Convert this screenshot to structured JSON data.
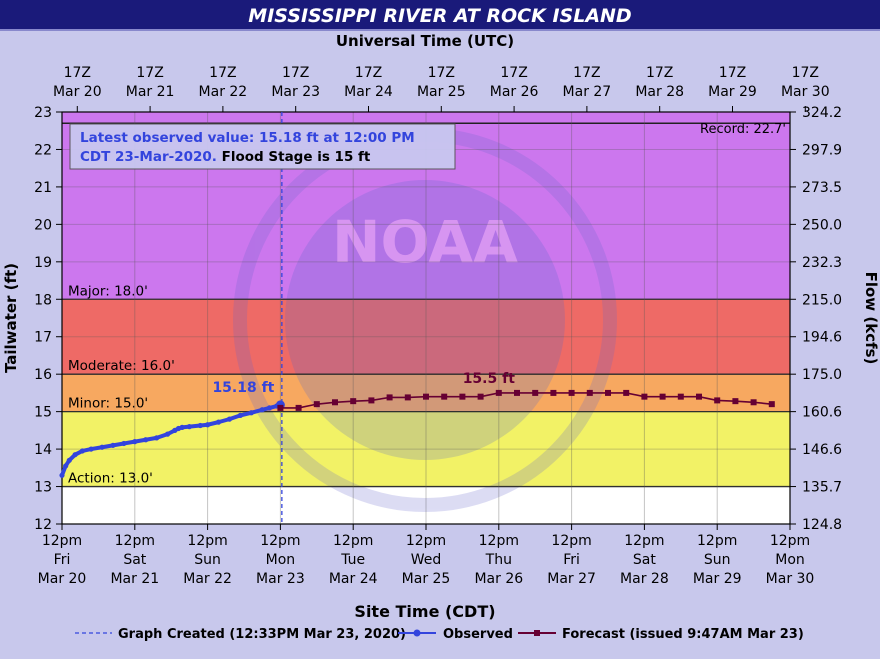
{
  "title": "MISSISSIPPI RIVER AT ROCK ISLAND",
  "top_axis_title": "Universal Time (UTC)",
  "bottom_axis_title": "Site Time (CDT)",
  "left_axis_title": "Tailwater (ft)",
  "right_axis_title": "Flow (kcfs)",
  "info_box": {
    "line1": "Latest observed value: 15.18 ft at 12:00 PM",
    "line2": "CDT 23-Mar-2020.",
    "line2_bold": "Flood Stage is 15 ft"
  },
  "record_label": "Record: 22.7'",
  "watermark": "NOAA",
  "legend": {
    "created": "Graph Created (12:33PM Mar 23, 2020)",
    "observed": "Observed",
    "forecast": "Forecast (issued 9:47AM Mar 23)"
  },
  "colors": {
    "record_band": "#cc77ee",
    "major_band": "#ee6a66",
    "moderate_band": "#f7a860",
    "minor_band": "#f2f266",
    "below_action": "#ffffff",
    "observed": "#3344dd",
    "forecast": "#660033",
    "title_bg": "#1a1a7a",
    "created_line": "#3344dd"
  },
  "chart_data": {
    "type": "line",
    "x_unit": "days since Mar 20 12pm CDT",
    "xlim": [
      0,
      10
    ],
    "ylim": [
      12,
      23
    ],
    "y_ticks": [
      12,
      13,
      14,
      15,
      16,
      17,
      18,
      19,
      20,
      21,
      22,
      23
    ],
    "flow_ticks": [
      {
        "stage": 23,
        "label": "324.2"
      },
      {
        "stage": 22,
        "label": "297.9"
      },
      {
        "stage": 21,
        "label": "273.5"
      },
      {
        "stage": 20,
        "label": "250.0"
      },
      {
        "stage": 19,
        "label": "232.3"
      },
      {
        "stage": 18,
        "label": "215.0"
      },
      {
        "stage": 17,
        "label": "194.6"
      },
      {
        "stage": 16,
        "label": "175.0"
      },
      {
        "stage": 15,
        "label": "160.6"
      },
      {
        "stage": 14,
        "label": "146.6"
      },
      {
        "stage": 13,
        "label": "135.7"
      },
      {
        "stage": 12,
        "label": "124.8"
      }
    ],
    "bottom_ticks": [
      {
        "l1": "12pm",
        "l2": "Fri",
        "l3": "Mar 20"
      },
      {
        "l1": "12pm",
        "l2": "Sat",
        "l3": "Mar 21"
      },
      {
        "l1": "12pm",
        "l2": "Sun",
        "l3": "Mar 22"
      },
      {
        "l1": "12pm",
        "l2": "Mon",
        "l3": "Mar 23"
      },
      {
        "l1": "12pm",
        "l2": "Tue",
        "l3": "Mar 24"
      },
      {
        "l1": "12pm",
        "l2": "Wed",
        "l3": "Mar 25"
      },
      {
        "l1": "12pm",
        "l2": "Thu",
        "l3": "Mar 26"
      },
      {
        "l1": "12pm",
        "l2": "Fri",
        "l3": "Mar 27"
      },
      {
        "l1": "12pm",
        "l2": "Sat",
        "l3": "Mar 28"
      },
      {
        "l1": "12pm",
        "l2": "Sun",
        "l3": "Mar 29"
      },
      {
        "l1": "12pm",
        "l2": "Mon",
        "l3": "Mar 30"
      }
    ],
    "top_ticks": [
      {
        "l1": "17Z",
        "l2": "Mar 20"
      },
      {
        "l1": "17Z",
        "l2": "Mar 21"
      },
      {
        "l1": "17Z",
        "l2": "Mar 22"
      },
      {
        "l1": "17Z",
        "l2": "Mar 23"
      },
      {
        "l1": "17Z",
        "l2": "Mar 24"
      },
      {
        "l1": "17Z",
        "l2": "Mar 25"
      },
      {
        "l1": "17Z",
        "l2": "Mar 26"
      },
      {
        "l1": "17Z",
        "l2": "Mar 27"
      },
      {
        "l1": "17Z",
        "l2": "Mar 28"
      },
      {
        "l1": "17Z",
        "l2": "Mar 29"
      },
      {
        "l1": "17Z",
        "l2": "Mar 30"
      }
    ],
    "thresholds": [
      {
        "name": "Action",
        "value": 13.0,
        "label": "Action: 13.0'"
      },
      {
        "name": "Minor",
        "value": 15.0,
        "label": "Minor: 15.0'"
      },
      {
        "name": "Moderate",
        "value": 16.0,
        "label": "Moderate: 16.0'"
      },
      {
        "name": "Major",
        "value": 18.0,
        "label": "Major: 18.0'"
      },
      {
        "name": "Record",
        "value": 22.7,
        "label": ""
      }
    ],
    "created_x": 3.02,
    "observed_label": "15.18 ft",
    "forecast_label": "15.5 ft",
    "observed": {
      "x": [
        0.0,
        0.05,
        0.1,
        0.18,
        0.28,
        0.4,
        0.55,
        0.7,
        0.85,
        1.0,
        1.15,
        1.3,
        1.45,
        1.55,
        1.6,
        1.65,
        1.75,
        1.9,
        2.0,
        2.15,
        2.3,
        2.45,
        2.6,
        2.75,
        2.85,
        2.95,
        3.0
      ],
      "y": [
        13.3,
        13.55,
        13.7,
        13.85,
        13.95,
        14.0,
        14.05,
        14.1,
        14.15,
        14.2,
        14.25,
        14.3,
        14.4,
        14.5,
        14.55,
        14.58,
        14.6,
        14.63,
        14.65,
        14.72,
        14.8,
        14.9,
        14.97,
        15.05,
        15.1,
        15.15,
        15.18
      ]
    },
    "forecast": {
      "x": [
        3.0,
        3.25,
        3.5,
        3.75,
        4.0,
        4.25,
        4.5,
        4.75,
        5.0,
        5.25,
        5.5,
        5.75,
        6.0,
        6.25,
        6.5,
        6.75,
        7.0,
        7.25,
        7.5,
        7.75,
        8.0,
        8.25,
        8.5,
        8.75,
        9.0,
        9.25,
        9.5,
        9.75
      ],
      "y": [
        15.1,
        15.1,
        15.2,
        15.25,
        15.28,
        15.3,
        15.38,
        15.38,
        15.4,
        15.4,
        15.4,
        15.4,
        15.5,
        15.5,
        15.5,
        15.5,
        15.5,
        15.5,
        15.5,
        15.5,
        15.4,
        15.4,
        15.4,
        15.4,
        15.3,
        15.28,
        15.25,
        15.2
      ]
    }
  }
}
